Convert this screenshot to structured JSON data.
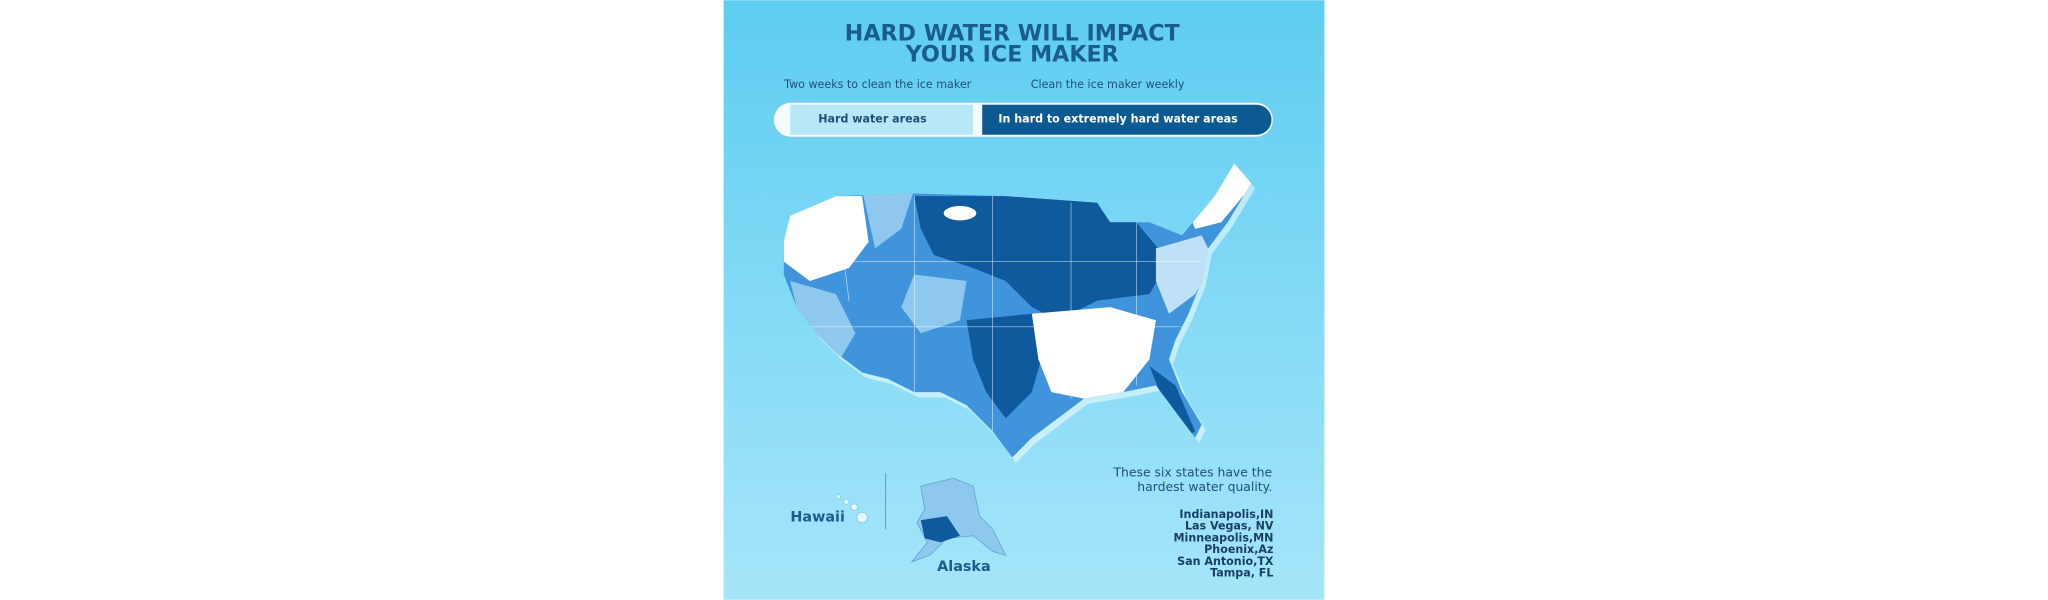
{
  "header": {
    "title": [
      "HARD WATER WILL IMPACT",
      "YOUR ICE MAKER"
    ]
  },
  "legend": {
    "captions": [
      "Two weeks to clean the ice maker",
      "Clean the ice maker weekly"
    ],
    "segments": [
      "Hard water areas",
      "In hard to extremely hard water areas"
    ]
  },
  "map": {
    "labels": [
      "Hawaii",
      "Alaska"
    ]
  },
  "note": {
    "text": [
      "These six states have the",
      "hardest water quality."
    ],
    "cities": [
      "Indianapolis,IN",
      "Las Vegas, NV",
      "Minneapolis,MN",
      "Phoenix,Az",
      "San Antonio,TX",
      "Tampa, FL"
    ]
  }
}
